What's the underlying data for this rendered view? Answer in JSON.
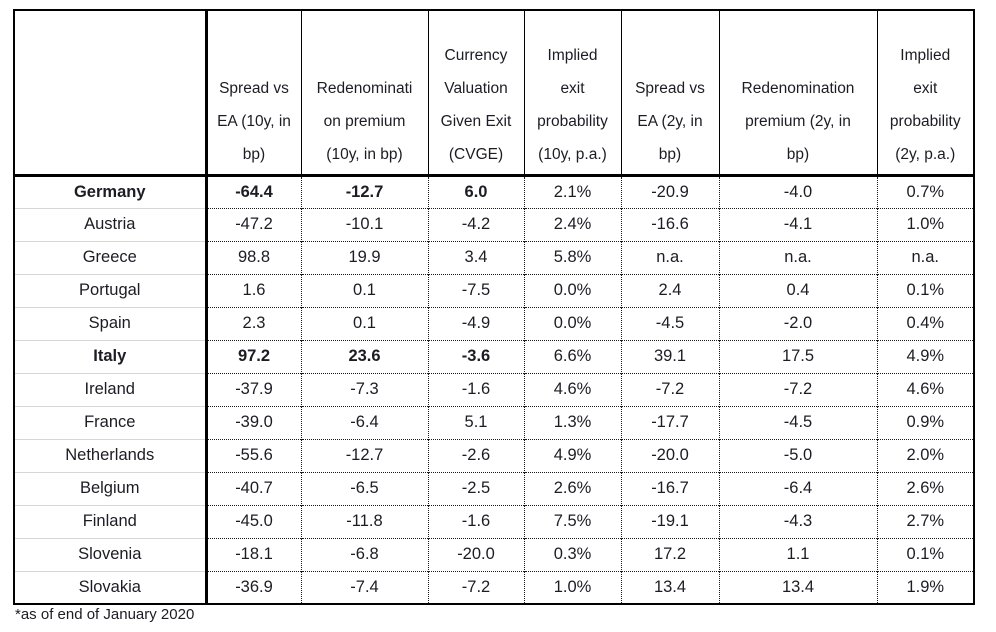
{
  "chart_data": {
    "type": "table",
    "title": "",
    "columns": [
      {
        "label": ""
      },
      {
        "label": "Spread vs\nEA (10y, in\nbp)"
      },
      {
        "label": "Redenominati\non premium\n(10y, in bp)"
      },
      {
        "label": "Currency\nValuation\nGiven Exit\n(CVGE)"
      },
      {
        "label": "Implied\nexit\nprobability\n(10y, p.a.)"
      },
      {
        "label": "Spread vs\nEA (2y, in\nbp)"
      },
      {
        "label": "Redenomination\npremium (2y, in\nbp)"
      },
      {
        "label": "Implied\nexit\nprobability\n(2y, p.a.)"
      }
    ],
    "rows": [
      {
        "country": "Germany",
        "bold": true,
        "values": [
          "-64.4",
          "-12.7",
          "6.0",
          "2.1%",
          "-20.9",
          "-4.0",
          "0.7%"
        ]
      },
      {
        "country": "Austria",
        "bold": false,
        "values": [
          "-47.2",
          "-10.1",
          "-4.2",
          "2.4%",
          "-16.6",
          "-4.1",
          "1.0%"
        ]
      },
      {
        "country": "Greece",
        "bold": false,
        "values": [
          "98.8",
          "19.9",
          "3.4",
          "5.8%",
          "n.a.",
          "n.a.",
          "n.a."
        ]
      },
      {
        "country": "Portugal",
        "bold": false,
        "values": [
          "1.6",
          "0.1",
          "-7.5",
          "0.0%",
          "2.4",
          "0.4",
          "0.1%"
        ]
      },
      {
        "country": "Spain",
        "bold": false,
        "values": [
          "2.3",
          "0.1",
          "-4.9",
          "0.0%",
          "-4.5",
          "-2.0",
          "0.4%"
        ]
      },
      {
        "country": "Italy",
        "bold": true,
        "values": [
          "97.2",
          "23.6",
          "-3.6",
          "6.6%",
          "39.1",
          "17.5",
          "4.9%"
        ]
      },
      {
        "country": "Ireland",
        "bold": false,
        "values": [
          "-37.9",
          "-7.3",
          "-1.6",
          "4.6%",
          "-7.2",
          "-7.2",
          "4.6%"
        ]
      },
      {
        "country": "France",
        "bold": false,
        "values": [
          "-39.0",
          "-6.4",
          "5.1",
          "1.3%",
          "-17.7",
          "-4.5",
          "0.9%"
        ]
      },
      {
        "country": "Netherlands",
        "bold": false,
        "values": [
          "-55.6",
          "-12.7",
          "-2.6",
          "4.9%",
          "-20.0",
          "-5.0",
          "2.0%"
        ]
      },
      {
        "country": "Belgium",
        "bold": false,
        "values": [
          "-40.7",
          "-6.5",
          "-2.5",
          "2.6%",
          "-16.7",
          "-6.4",
          "2.6%"
        ]
      },
      {
        "country": "Finland",
        "bold": false,
        "values": [
          "-45.0",
          "-11.8",
          "-1.6",
          "7.5%",
          "-19.1",
          "-4.3",
          "2.7%"
        ]
      },
      {
        "country": "Slovenia",
        "bold": false,
        "values": [
          "-18.1",
          "-6.8",
          "-20.0",
          "0.3%",
          "17.2",
          "1.1",
          "0.1%"
        ]
      },
      {
        "country": "Slovakia",
        "bold": false,
        "values": [
          "-36.9",
          "-7.4",
          "-7.2",
          "1.0%",
          "13.4",
          "13.4",
          "1.9%"
        ]
      }
    ],
    "footnote": "*as of end of January 2020",
    "layout_hints": {
      "grid": "dotted interior lines, solid outer border",
      "bold_region": "country name and first three value columns for Germany and Italy"
    },
    "colors": {
      "border": "#000000",
      "light_row_line": "#d6d6d6",
      "text": "#1c1c24",
      "background": "#ffffff"
    }
  }
}
